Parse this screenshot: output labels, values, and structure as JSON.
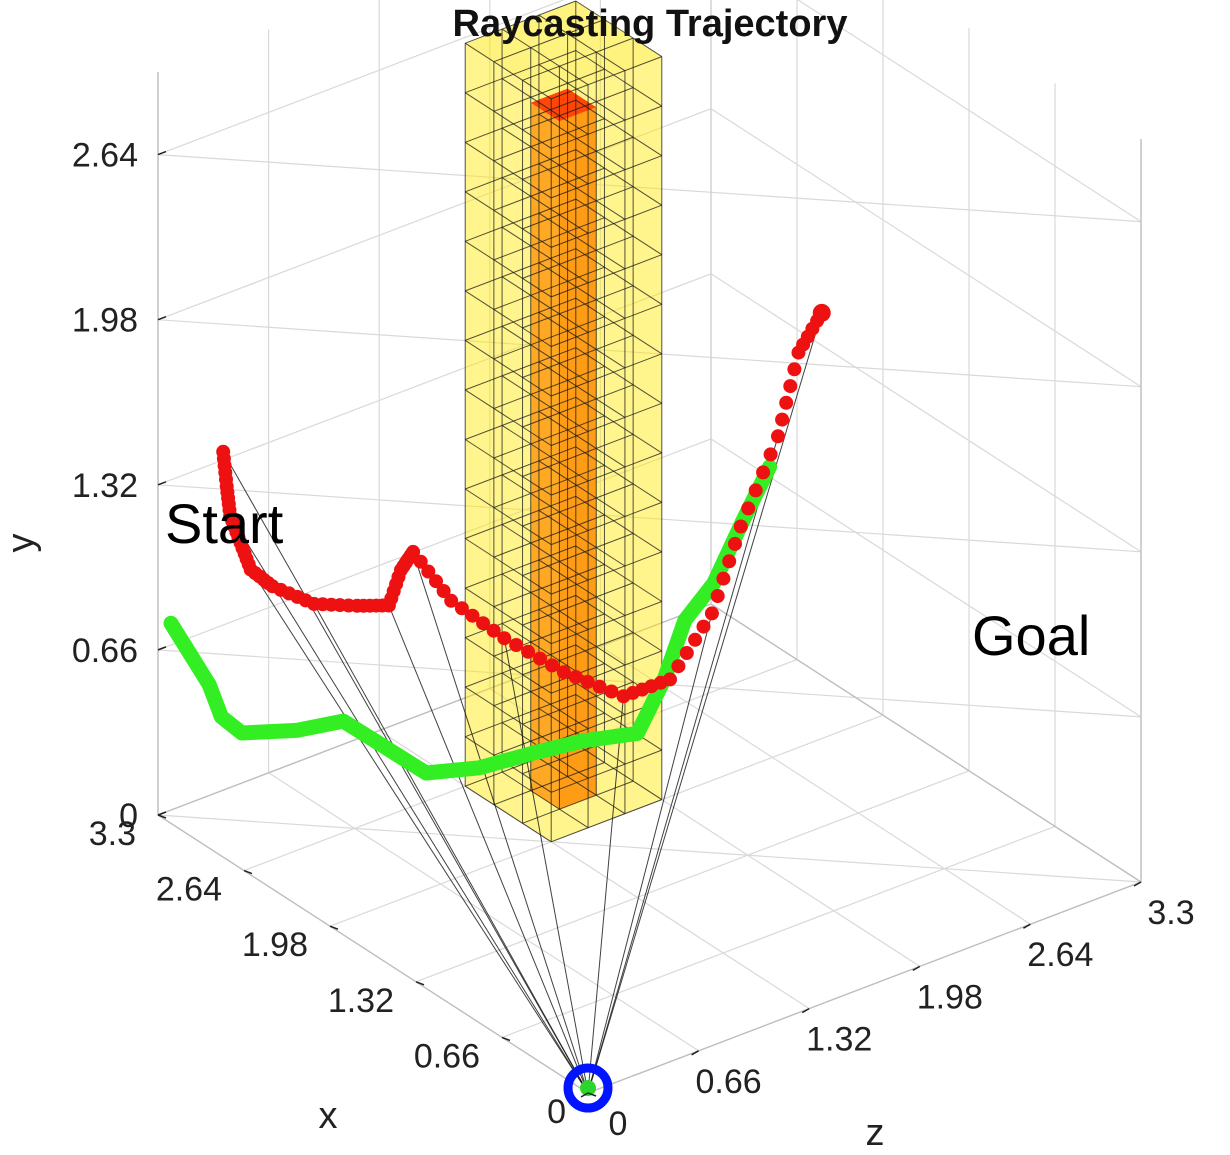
{
  "chart_data": {
    "type": "scatter3d",
    "title": "Raycasting Trajectory",
    "xlabel": "x",
    "ylabel": "y",
    "zlabel": "z",
    "xlim": [
      0,
      3.3
    ],
    "ylim": [
      0,
      2.97
    ],
    "zlim": [
      0,
      3.3
    ],
    "x_ticks": [
      "0",
      "0.66",
      "1.32",
      "1.98",
      "2.64",
      "3.3"
    ],
    "y_ticks": [
      "0",
      "0.66",
      "1.32",
      "1.98",
      "2.64"
    ],
    "z_ticks": [
      "0",
      "0.66",
      "1.32",
      "1.98",
      "2.64",
      "3.3"
    ],
    "grid": true,
    "annotations": [
      {
        "text": "Start",
        "at": [
          2.8,
          1.6,
          0.0
        ]
      },
      {
        "text": "Goal",
        "at": [
          0.4,
          1.05,
          3.3
        ]
      }
    ],
    "obstacle": {
      "name": "occupied voxel block",
      "x_range": [
        1.98,
        2.64
      ],
      "y_range": [
        0,
        2.97
      ],
      "z_range": [
        1.32,
        1.98
      ],
      "voxel_size": 0.22,
      "color": "#ffe800"
    },
    "obstacle_core": {
      "name": "high-occupancy core",
      "x_range": [
        2.2,
        2.42
      ],
      "y_range": [
        0,
        2.75
      ],
      "z_range": [
        1.54,
        1.76
      ],
      "color": "#ff6a00"
    },
    "sensor": {
      "name": "ray origin",
      "position": [
        0,
        0,
        0
      ],
      "color": "#0014ff"
    },
    "series": [
      {
        "name": "raycast trajectory",
        "marker": "dot",
        "color": "#ee1111",
        "points": [
          [
            2.8,
            1.62,
            0.0
          ],
          [
            2.85,
            1.45,
            0.06
          ],
          [
            2.9,
            1.3,
            0.12
          ],
          [
            2.95,
            1.15,
            0.22
          ],
          [
            3.0,
            1.0,
            0.32
          ],
          [
            3.0,
            0.9,
            0.45
          ],
          [
            2.9,
            0.82,
            0.62
          ],
          [
            2.8,
            0.8,
            0.8
          ],
          [
            2.75,
            0.78,
            0.95
          ],
          [
            2.85,
            0.85,
            1.1
          ],
          [
            2.95,
            0.85,
            1.25
          ],
          [
            2.85,
            0.65,
            1.4
          ],
          [
            2.7,
            0.5,
            1.6
          ],
          [
            2.5,
            0.38,
            1.8
          ],
          [
            2.3,
            0.3,
            2.0
          ],
          [
            2.2,
            0.35,
            2.2
          ],
          [
            2.2,
            0.55,
            2.45
          ],
          [
            2.3,
            0.8,
            2.7
          ],
          [
            2.4,
            1.05,
            3.0
          ],
          [
            2.5,
            1.3,
            3.2
          ],
          [
            2.45,
            1.45,
            3.3
          ]
        ]
      },
      {
        "name": "executed path",
        "marker": "thick-line",
        "color": "#33ee22",
        "points": [
          [
            3.2,
            0.8,
            0.0
          ],
          [
            3.1,
            0.55,
            0.15
          ],
          [
            3.2,
            0.35,
            0.3
          ],
          [
            3.3,
            0.2,
            0.5
          ],
          [
            3.2,
            0.18,
            0.75
          ],
          [
            3.1,
            0.2,
            0.95
          ],
          [
            3.0,
            0.1,
            1.1
          ],
          [
            2.85,
            0.0,
            1.25
          ],
          [
            2.7,
            0.02,
            1.45
          ],
          [
            2.6,
            0.05,
            1.7
          ],
          [
            2.55,
            0.05,
            1.95
          ],
          [
            2.45,
            0.05,
            2.2
          ],
          [
            2.5,
            0.2,
            2.4
          ],
          [
            2.6,
            0.35,
            2.6
          ],
          [
            2.7,
            0.4,
            2.85
          ],
          [
            2.8,
            0.55,
            3.1
          ],
          [
            2.85,
            0.7,
            3.3
          ]
        ]
      }
    ]
  }
}
